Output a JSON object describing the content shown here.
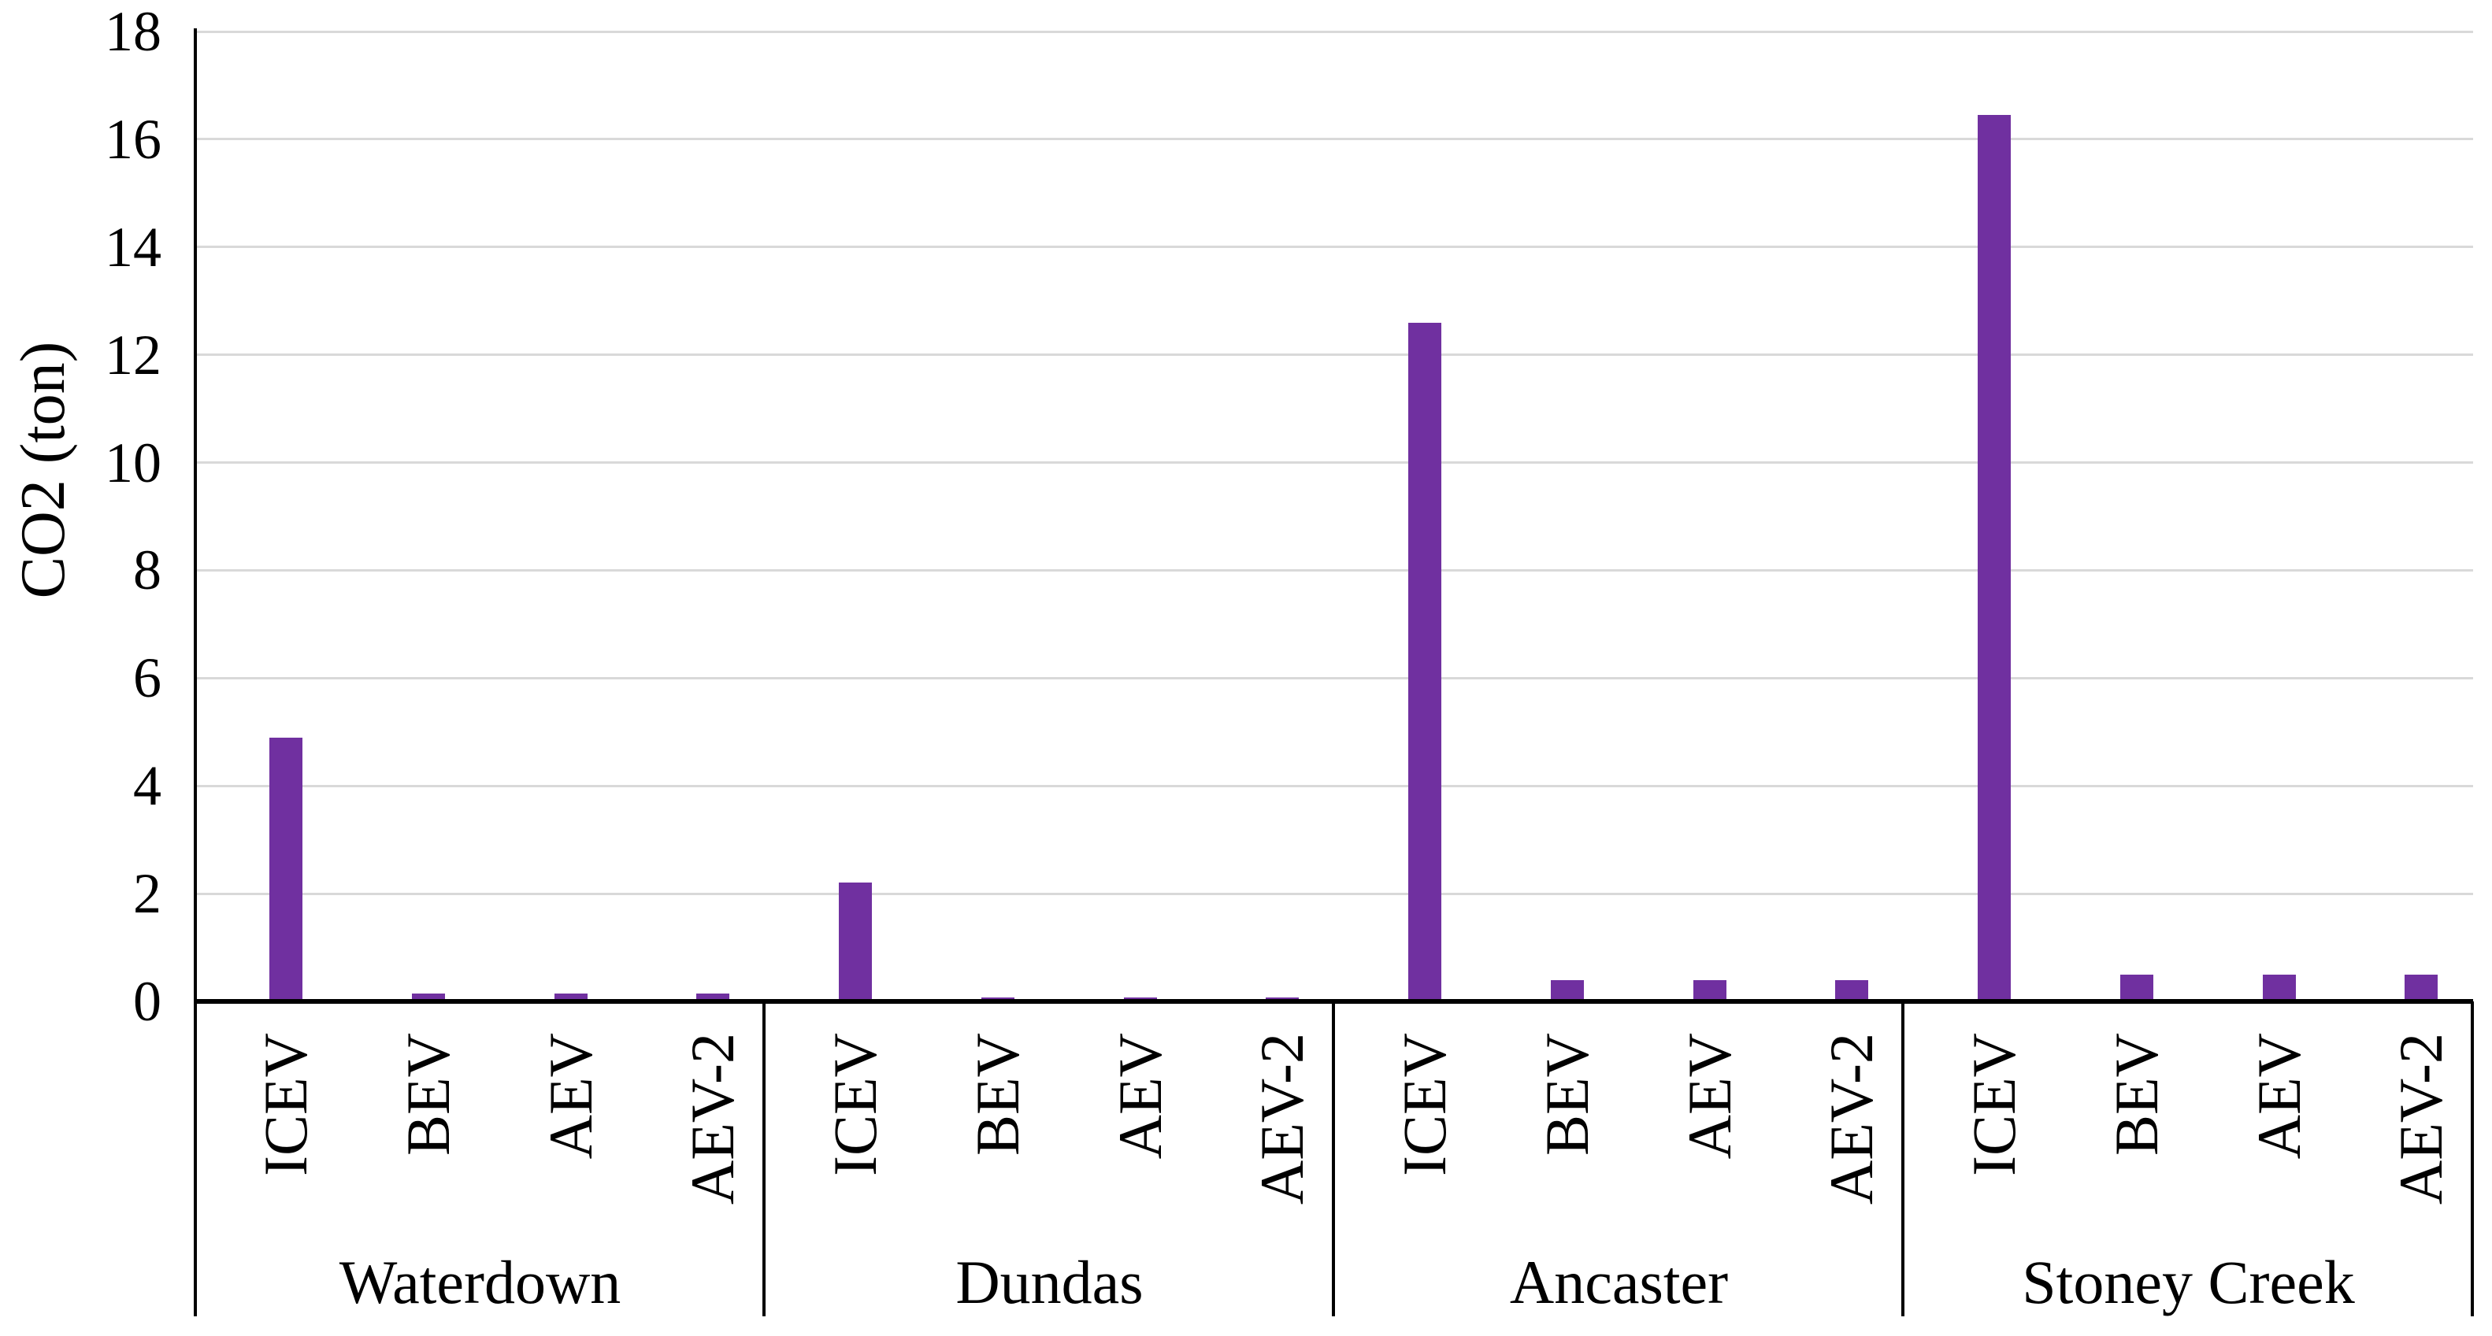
{
  "chart_data": {
    "type": "bar",
    "title": "",
    "xlabel": "",
    "ylabel": "CO2 (ton)",
    "ylim": [
      0,
      18
    ],
    "ytick_step": 2,
    "yticks": [
      "0",
      "2",
      "4",
      "6",
      "8",
      "10",
      "12",
      "14",
      "16",
      "18"
    ],
    "grid": "horizontal-on",
    "legend_position": "none",
    "bar_color": "#7030A0",
    "categories": [
      "ICEV",
      "BEV",
      "AEV",
      "AEV-2"
    ],
    "groups": [
      "Waterdown",
      "Dundas",
      "Ancaster",
      "Stoney Creek"
    ],
    "series": [
      {
        "group": "Waterdown",
        "values": [
          4.9,
          0.15,
          0.15,
          0.15
        ]
      },
      {
        "group": "Dundas",
        "values": [
          2.2,
          0.08,
          0.08,
          0.08
        ]
      },
      {
        "group": "Ancaster",
        "values": [
          12.6,
          0.4,
          0.4,
          0.4
        ]
      },
      {
        "group": "Stoney Creek",
        "values": [
          16.45,
          0.5,
          0.5,
          0.5
        ]
      }
    ],
    "colors": {
      "gridline": "#d9d9d9",
      "axis": "#000000",
      "text": "#000000",
      "background": "#ffffff"
    }
  }
}
